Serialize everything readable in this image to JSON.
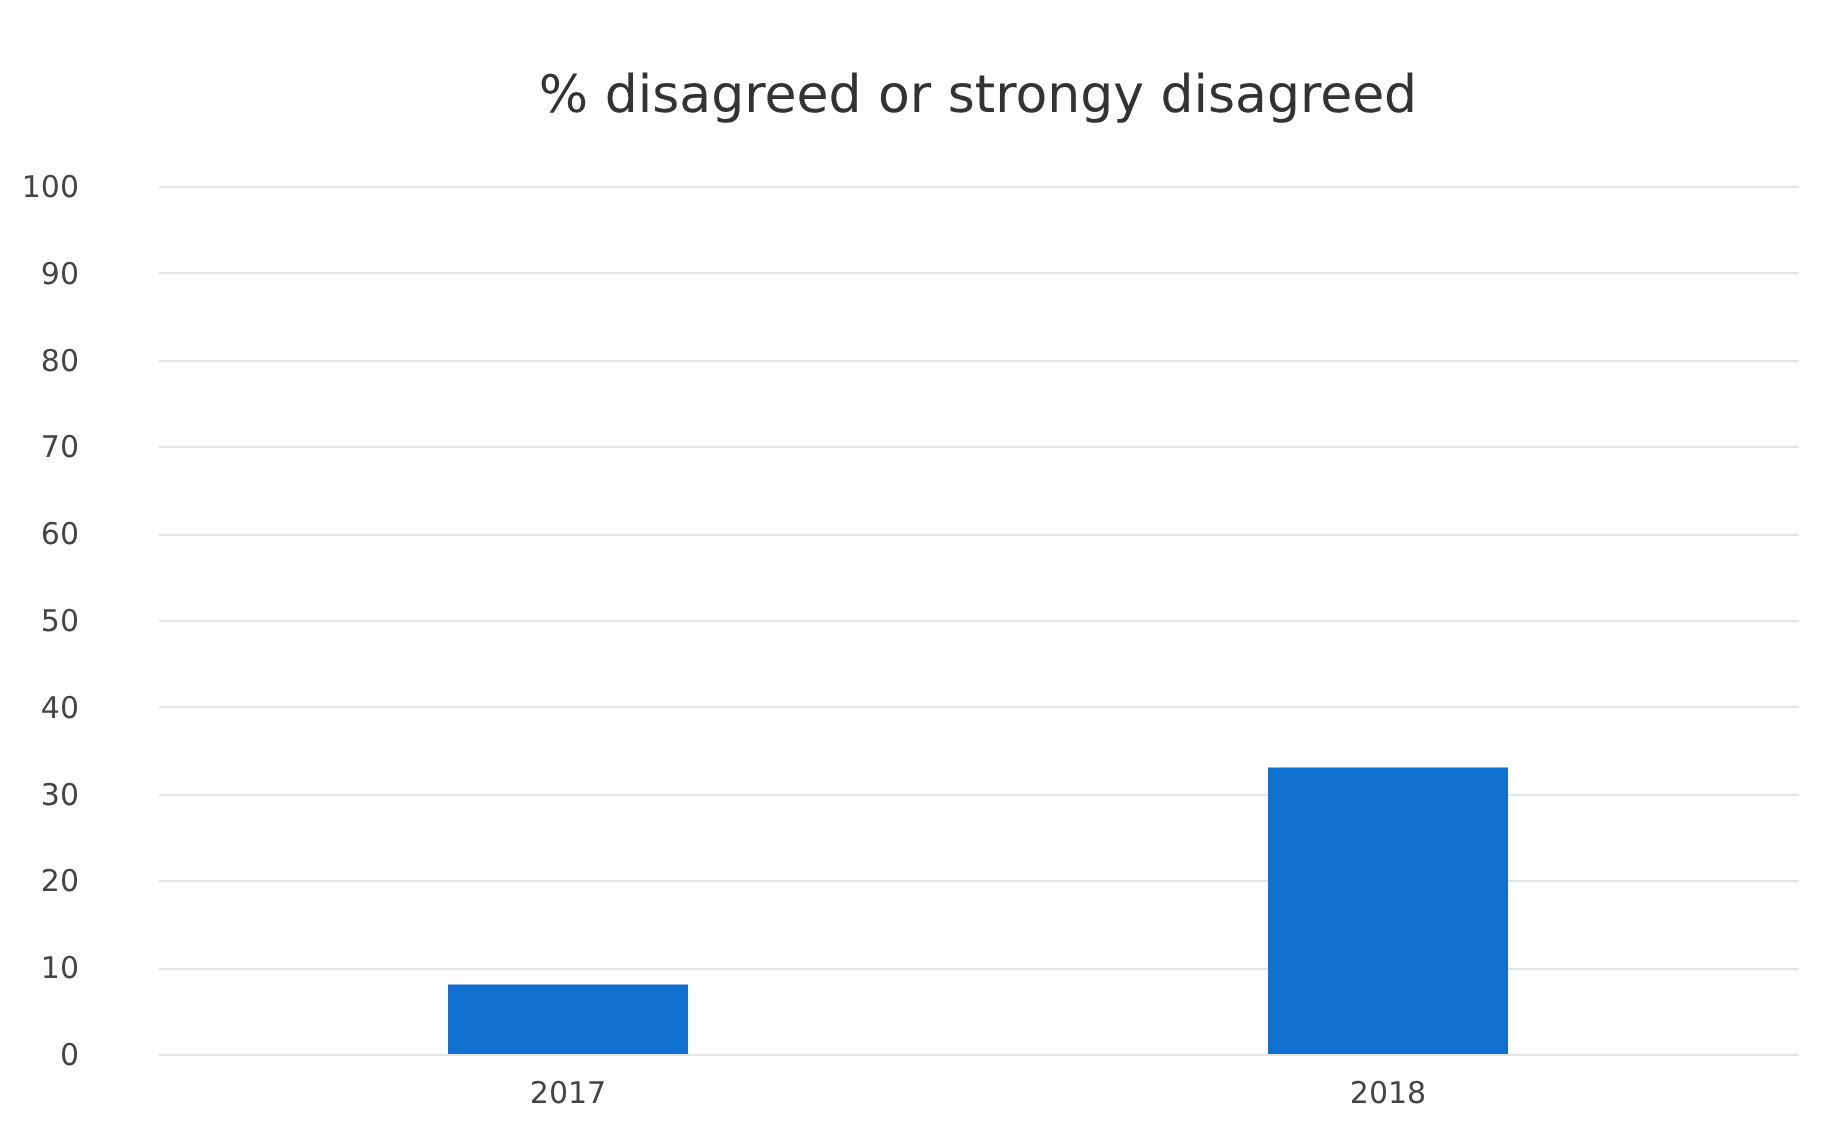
{
  "chart_data": {
    "type": "bar",
    "title": "% disagreed or strongy disagreed",
    "categories": [
      "2017",
      "2018"
    ],
    "values": [
      8,
      33
    ],
    "color": "#1070d0",
    "ylim": [
      0,
      100
    ],
    "yticks": [
      0,
      10,
      20,
      30,
      40,
      50,
      60,
      70,
      80,
      90,
      100
    ],
    "grid": "y"
  }
}
